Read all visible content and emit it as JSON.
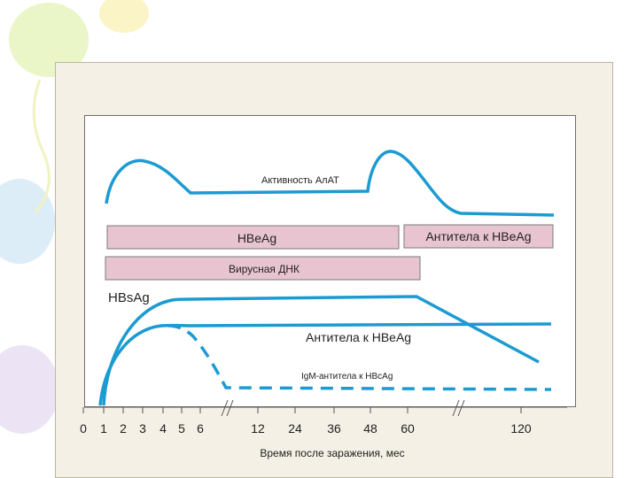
{
  "diagram": {
    "curve_labels": {
      "alt_activity": "Активность АлАТ",
      "hbsag": "HBsAg",
      "anti_hbe_curve": "Антитела к HBeAg",
      "igm_anti_hbc": "IgM-антитела к HBcAg"
    },
    "bars": {
      "hbeag": "HBeAg",
      "anti_hbeag": "Антитела к HBeAg",
      "viral_dna": "Вирусная ДНК"
    },
    "x_ticks": [
      "0",
      "1",
      "2",
      "3",
      "4",
      "5",
      "6",
      "12",
      "24",
      "36",
      "48",
      "60",
      "120"
    ],
    "x_axis_label": "Время после заражения, мес"
  },
  "colors": {
    "curve": "#1b9bd1",
    "bar_fill": "#e8c4d0",
    "bar_stroke": "#7a7a7a",
    "panel": "#f4f0e6"
  }
}
